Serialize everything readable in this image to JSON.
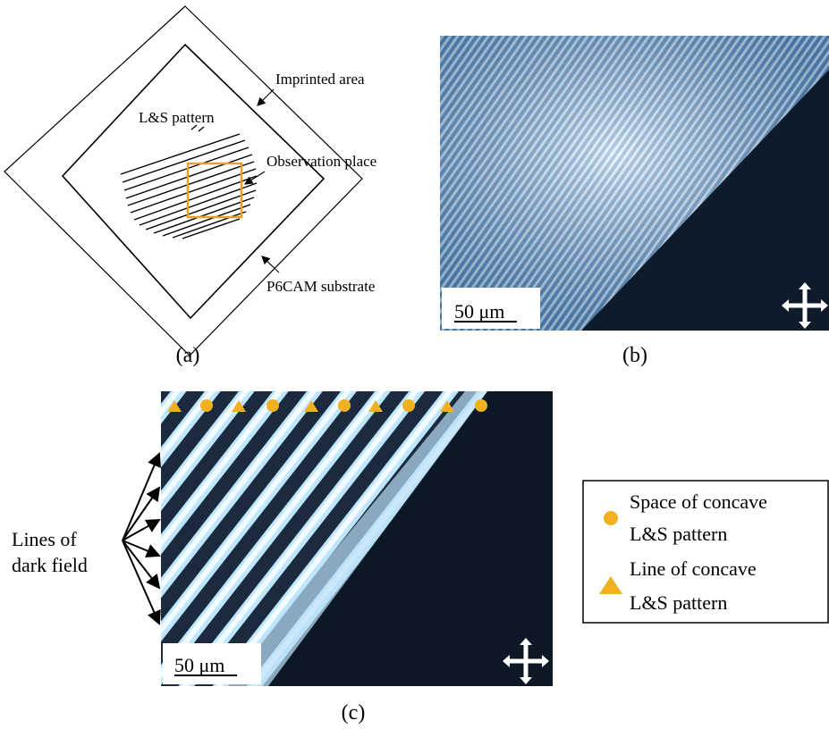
{
  "panel_a": {
    "imprinted_area": "Imprinted area",
    "ls_pattern": "L&S pattern",
    "observation_place": "Observation place",
    "substrate": "P6CAM substrate",
    "caption": "(a)"
  },
  "panel_b": {
    "scale_bar": "50 μm",
    "caption": "(b)"
  },
  "panel_c": {
    "annotation": [
      "Lines of",
      "dark field"
    ],
    "scale_bar": "50 μm",
    "caption": "(c)",
    "legend": [
      {
        "label": [
          "Space of concave",
          "L&S pattern"
        ]
      },
      {
        "label": [
          "Line of concave",
          "L&S pattern"
        ]
      }
    ]
  }
}
